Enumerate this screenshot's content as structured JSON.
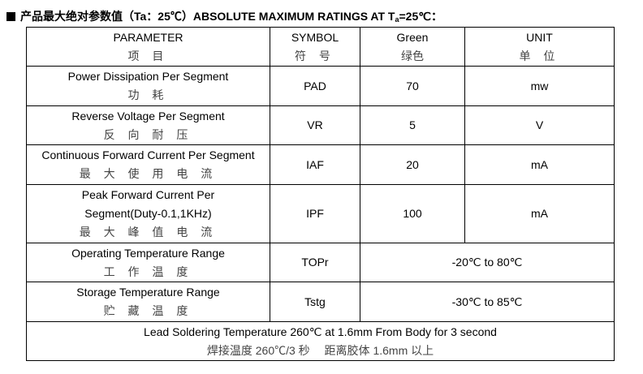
{
  "heading": {
    "prefix": "产品最大绝对参数值（Ta：25℃）ABSOLUTE MAXIMUM RATINGS AT T",
    "sub": "a",
    "suffix": "=25℃："
  },
  "header": {
    "parameter": "PARAMETER",
    "parameter_zh": "项 目",
    "symbol": "SYMBOL",
    "symbol_zh": "符 号",
    "green": "Green",
    "green_zh": "绿色",
    "unit": "UNIT",
    "unit_zh": "单 位"
  },
  "rows": [
    {
      "param": "Power Dissipation Per Segment",
      "param_zh": "功 耗",
      "symbol": "PAD",
      "value": "70",
      "unit": "mw"
    },
    {
      "param": "Reverse Voltage Per Segment",
      "param_zh": "反 向 耐 压",
      "symbol": "VR",
      "value": "5",
      "unit": "V"
    },
    {
      "param": "Continuous Forward Current Per Segment",
      "param_zh": "最 大 使 用 电 流",
      "symbol": "IAF",
      "value": "20",
      "unit": "mA"
    },
    {
      "param1": "Peak Forward Current Per",
      "param2": "Segment(Duty-0.1,1KHz)",
      "param_zh": "最 大 峰 值 电 流",
      "symbol": "IPF",
      "value": "100",
      "unit": "mA"
    },
    {
      "param": "Operating Temperature Range",
      "param_zh": "工 作 温 度",
      "symbol": "TOPr",
      "range": "-20℃ to 80℃"
    },
    {
      "param": "Storage Temperature Range",
      "param_zh": "贮 藏 温 度",
      "symbol": "Tstg",
      "range": "-30℃ to 85℃"
    }
  ],
  "footer": {
    "en": "Lead Soldering Temperature 260℃ at 1.6mm From Body for 3 second",
    "zh": "焊接温度 260℃/3 秒　 距离胶体 1.6mm 以上"
  }
}
